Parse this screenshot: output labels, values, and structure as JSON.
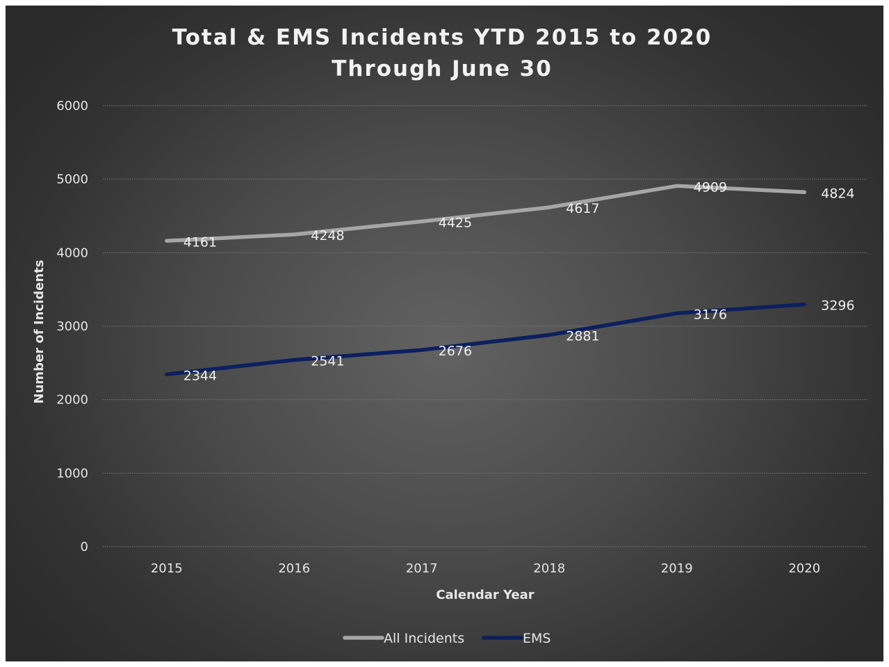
{
  "chart_data": {
    "type": "line",
    "title": "Total & EMS Incidents YTD 2015 to 2020",
    "subtitle": "Through June 30",
    "xlabel": "Calendar Year",
    "ylabel": "Number of Incidents",
    "categories": [
      "2015",
      "2016",
      "2017",
      "2018",
      "2019",
      "2020"
    ],
    "ylim": [
      0,
      6000
    ],
    "yticks": [
      0,
      1000,
      2000,
      3000,
      4000,
      5000,
      6000
    ],
    "grid": true,
    "legend_position": "bottom",
    "series": [
      {
        "name": "All Incidents",
        "color": "#a6a6a6",
        "values": [
          4161,
          4248,
          4425,
          4617,
          4909,
          4824
        ]
      },
      {
        "name": "EMS",
        "color": "#0c1f5e",
        "values": [
          2344,
          2541,
          2676,
          2881,
          3176,
          3296
        ]
      }
    ]
  }
}
